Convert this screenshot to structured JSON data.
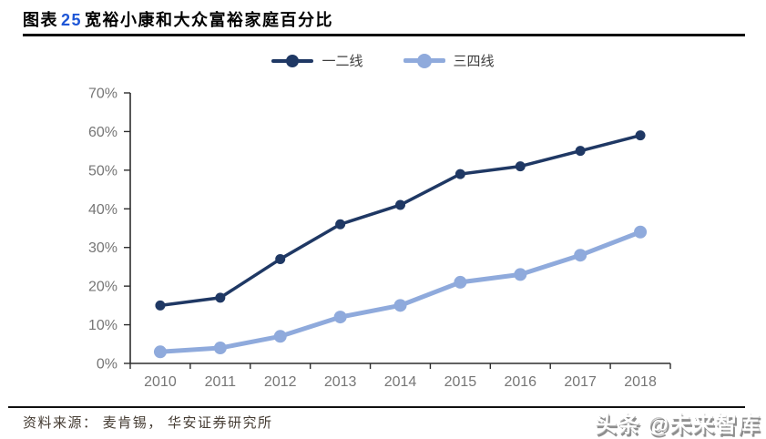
{
  "header": {
    "title_prefix": "图表",
    "title_number": "25",
    "title_text": "宽裕小康和大众富裕家庭百分比"
  },
  "legend": [
    {
      "label": "一二线",
      "color": "#1F3864"
    },
    {
      "label": "三四线",
      "color": "#8FAADC"
    }
  ],
  "chart_data": {
    "type": "line",
    "title": "宽裕小康和大众富裕家庭百分比",
    "x": [
      "2010",
      "2011",
      "2012",
      "2013",
      "2014",
      "2015",
      "2016",
      "2017",
      "2018"
    ],
    "series": [
      {
        "name": "一二线",
        "color": "#1F3864",
        "line_width": 3.5,
        "marker_radius": 5.5,
        "values": [
          15,
          17,
          27,
          36,
          41,
          49,
          51,
          55,
          59
        ]
      },
      {
        "name": "三四线",
        "color": "#8FAADC",
        "line_width": 5,
        "marker_radius": 7,
        "values": [
          3,
          4,
          7,
          12,
          15,
          21,
          23,
          28,
          34
        ]
      }
    ],
    "ylim": [
      0,
      70
    ],
    "ytick_step": 10,
    "ytick_labels": [
      "0%",
      "10%",
      "20%",
      "30%",
      "40%",
      "50%",
      "60%",
      "70%"
    ],
    "grid": false,
    "legend_position": "top",
    "unit": "%"
  },
  "footer": {
    "source_text": "资料来源： 麦肯锡， 华安证券研究所",
    "watermark": "头条 @未来智库"
  },
  "colors": {
    "series_dark": "#1F3864",
    "series_light": "#8FAADC",
    "title_number": "#1E56D6",
    "axis": "#2e2e2e",
    "tick_label": "#767676",
    "rule": "#0d0d0d"
  }
}
